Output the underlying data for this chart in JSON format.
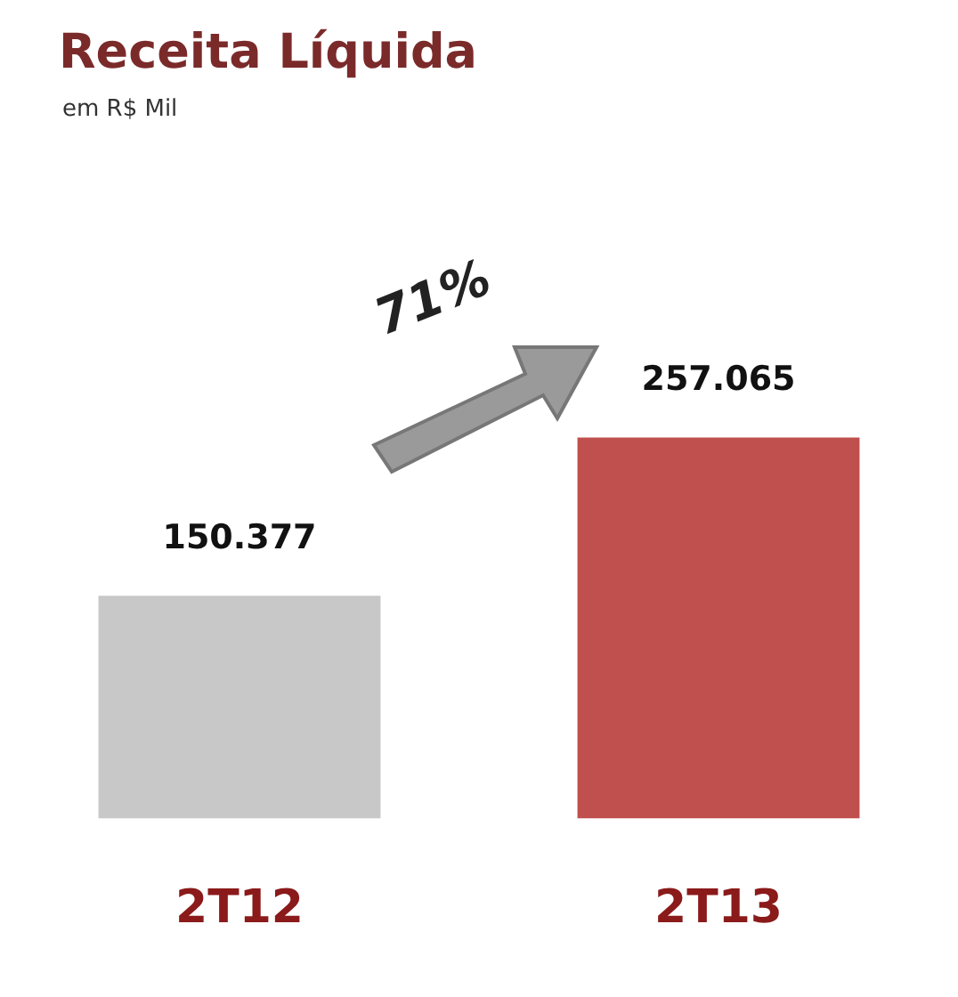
{
  "chart_data": {
    "type": "bar",
    "title": "Receita Líquida",
    "subtitle": "em R$ Mil",
    "categories": [
      "2T12",
      "2T13"
    ],
    "values": [
      150377,
      257065
    ],
    "colors": [
      "#c8c8c8",
      "#c0504d"
    ],
    "value_labels": [
      "150.377",
      "257.065"
    ],
    "annotations": [
      "71%"
    ]
  }
}
